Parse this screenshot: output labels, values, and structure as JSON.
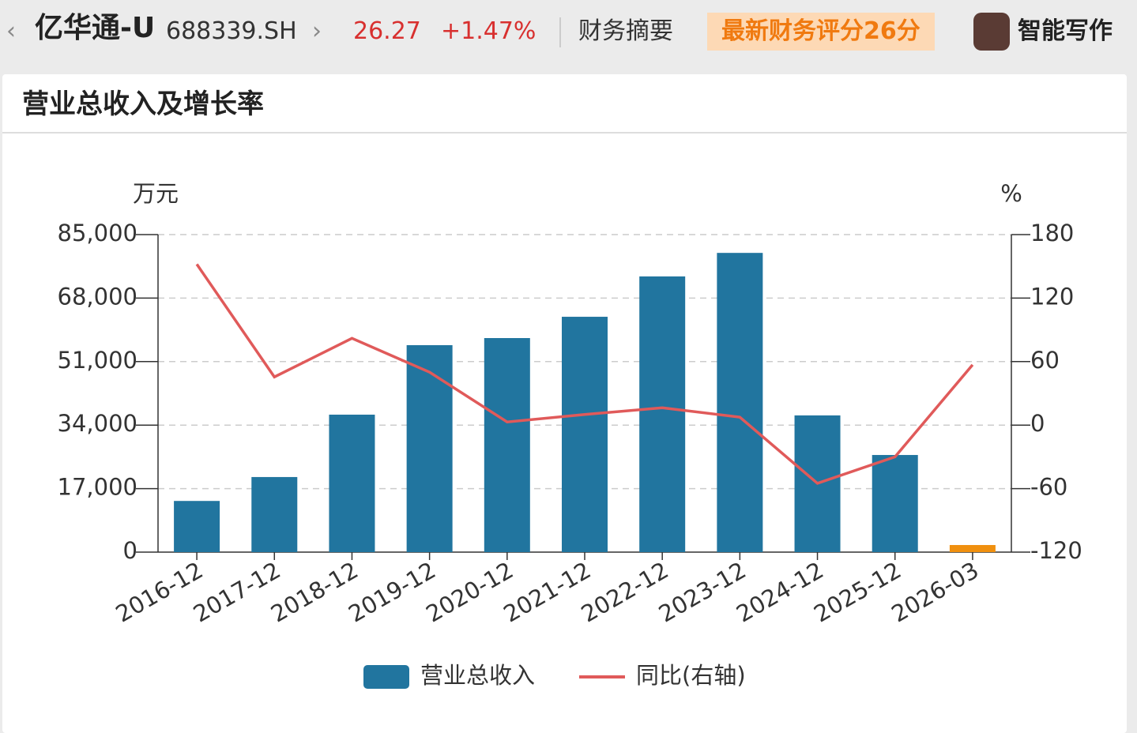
{
  "header": {
    "stock_name": "亿华通-U",
    "stock_code": "688339.SH",
    "price": "26.27",
    "change": "+1.47%",
    "tab": "财务摘要",
    "score_badge": "最新财务评分26分",
    "ai_writer": "智能写作"
  },
  "panel_title": "营业总收入及增长率",
  "chart_data": {
    "type": "bar",
    "y_unit": "万元",
    "y2_unit": "%",
    "categories": [
      "2016-12",
      "2017-12",
      "2018-12",
      "2019-12",
      "2020-12",
      "2021-12",
      "2022-12",
      "2023-12",
      "2024-12",
      "2025-12",
      "2026-03"
    ],
    "series": [
      {
        "name": "营业总收入",
        "type": "bar",
        "color": "#21759f",
        "colors": [
          "#21759f",
          "#21759f",
          "#21759f",
          "#21759f",
          "#21759f",
          "#21759f",
          "#21759f",
          "#21759f",
          "#21759f",
          "#21759f",
          "#f0900f"
        ],
        "values": [
          13700,
          20100,
          36800,
          55400,
          57300,
          63000,
          73800,
          80100,
          36600,
          26000,
          1900
        ]
      },
      {
        "name": "同比(右轴)",
        "type": "line",
        "axis": "y2",
        "color": "#e05a5a",
        "values": [
          152,
          45.5,
          82,
          50,
          3,
          10,
          16.4,
          7.5,
          -55,
          -30,
          57
        ]
      }
    ],
    "ylim": [
      0,
      85000
    ],
    "yticks": [
      0,
      {
        "value": 17000,
        "label": "17,000"
      },
      {
        "value": 34000,
        "label": "34,000"
      },
      {
        "value": 51000,
        "label": "51,000"
      },
      {
        "value": 68000,
        "label": "68,000"
      },
      {
        "value": 85000,
        "label": "85,000"
      }
    ],
    "y2lim": [
      -120,
      180
    ],
    "y2ticks": [
      -120,
      -60,
      0,
      60,
      120,
      180
    ],
    "grid": true
  }
}
